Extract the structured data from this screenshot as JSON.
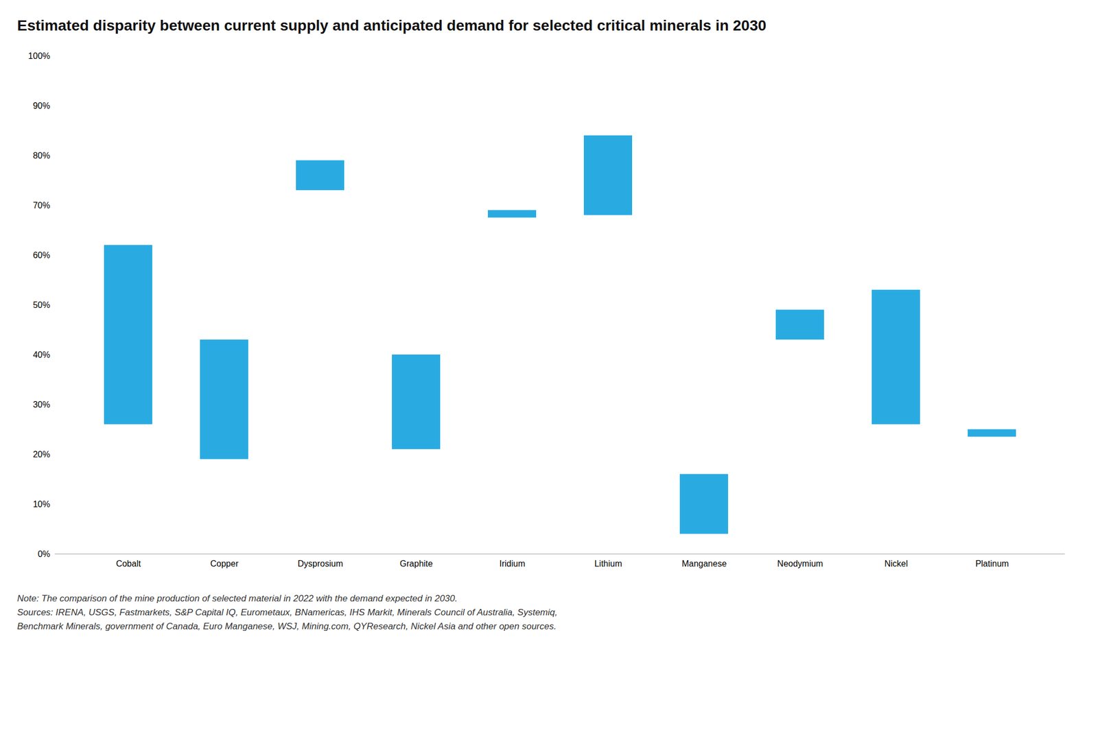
{
  "chart_data": {
    "type": "bar",
    "title": "Estimated disparity between current supply and anticipated demand for selected critical minerals in 2030",
    "categories": [
      "Cobalt",
      "Copper",
      "Dysprosium",
      "Graphite",
      "Iridium",
      "Lithium",
      "Manganese",
      "Neodymium",
      "Nickel",
      "Platinum"
    ],
    "low": [
      26,
      19,
      73,
      21,
      67.5,
      68,
      4,
      43,
      26,
      23.5
    ],
    "high": [
      62,
      43,
      79,
      40,
      69,
      84,
      16,
      49,
      53,
      25
    ],
    "color": "#29ABE2",
    "ylim": [
      0,
      100
    ],
    "yticks": [
      {
        "value": 0,
        "label": "0%"
      },
      {
        "value": 10,
        "label": "10%"
      },
      {
        "value": 20,
        "label": "20%"
      },
      {
        "value": 30,
        "label": "30%"
      },
      {
        "value": 40,
        "label": "40%"
      },
      {
        "value": 50,
        "label": "50%"
      },
      {
        "value": 60,
        "label": "60%"
      },
      {
        "value": 70,
        "label": "70%"
      },
      {
        "value": 80,
        "label": "80%"
      },
      {
        "value": 90,
        "label": "90%"
      },
      {
        "value": 100,
        "label": "100%"
      }
    ],
    "grid": false,
    "notes": [
      "Note: The comparison of the mine production of selected material in 2022 with the demand expected in 2030.",
      "Sources: IRENA, USGS, Fastmarkets, S&P Capital IQ, Eurometaux, BNamericas, IHS Markit, Minerals Council of Australia, Systemiq,",
      "Benchmark Minerals, government of Canada, Euro Manganese, WSJ, Mining.com, QYResearch, Nickel Asia and other open sources."
    ]
  }
}
